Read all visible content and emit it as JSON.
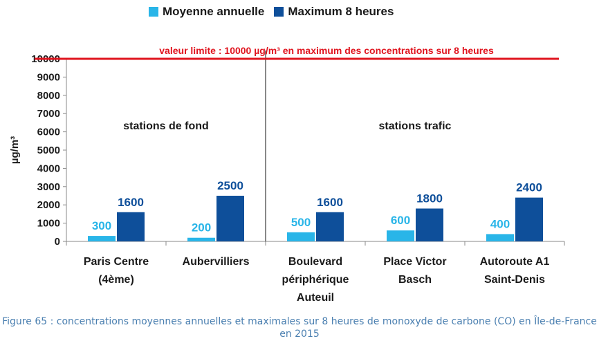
{
  "legend": [
    {
      "label": "Moyenne annuelle",
      "color": "#29b5e8"
    },
    {
      "label": "Maximum 8 heures",
      "color": "#0e4f9a"
    }
  ],
  "limit_line": {
    "label": "valeur limite : 10000 µg/m³ en maximum des concentrations sur 8 heures",
    "value": 10000,
    "color": "#e0141e"
  },
  "group_labels": {
    "fond": "stations de fond",
    "trafic": "stations trafic"
  },
  "caption": "Figure 65 : concentrations moyennes annuelles et maximales sur 8 heures de monoxyde de carbone (CO) en Île-de-France en 2015",
  "chart_data": {
    "type": "bar",
    "title": "",
    "xlabel": "",
    "ylabel": "µg/m³",
    "ylim": [
      0,
      10000
    ],
    "yticks": [
      0,
      1000,
      2000,
      3000,
      4000,
      5000,
      6000,
      7000,
      8000,
      9000,
      10000
    ],
    "grid": false,
    "legend_position": "top",
    "categories": [
      [
        "Paris Centre",
        "(4ème)"
      ],
      [
        "Aubervilliers"
      ],
      [
        "Boulevard",
        "périphérique",
        "Auteuil"
      ],
      [
        "Place Victor",
        "Basch"
      ],
      [
        "Autoroute A1",
        "Saint-Denis"
      ]
    ],
    "series": [
      {
        "name": "Moyenne annuelle",
        "color": "#29b5e8",
        "values": [
          300,
          200,
          500,
          600,
          400
        ]
      },
      {
        "name": "Maximum 8 heures",
        "color": "#0e4f9a",
        "values": [
          1600,
          2500,
          1600,
          1800,
          2400
        ]
      }
    ],
    "separator_after_category": 1
  }
}
